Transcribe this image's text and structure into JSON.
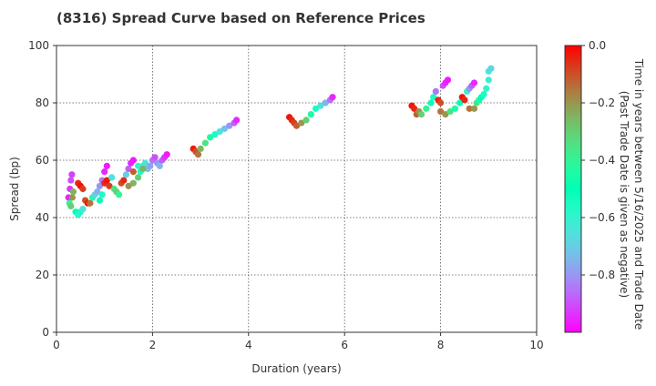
{
  "chart_data": {
    "type": "scatter",
    "title": "(8316)   Spread Curve based on Reference Prices",
    "xlabel": "Duration (years)",
    "ylabel": "Spread (bp)",
    "xlim": [
      0,
      10
    ],
    "ylim": [
      0,
      100
    ],
    "x_ticks": [
      "0",
      "2",
      "4",
      "6",
      "8",
      "10"
    ],
    "y_ticks": [
      "0",
      "20",
      "40",
      "60",
      "80",
      "100"
    ],
    "grid": true,
    "colorbar": {
      "label_line1": "Time in years between 5/16/2025 and Trade Date",
      "label_line2": "(Past Trade Date is given as negative)",
      "range": [
        -1.0,
        0.0
      ],
      "ticks": [
        "0.0",
        "−0.2",
        "−0.4",
        "−0.6",
        "−0.8"
      ],
      "colormap": "rainbow"
    },
    "series": [
      {
        "points": [
          [
            0.25,
            47,
            -0.95
          ],
          [
            0.28,
            50,
            -0.93
          ],
          [
            0.3,
            53,
            -0.9
          ],
          [
            0.32,
            55,
            -0.92
          ],
          [
            0.27,
            45,
            -0.4
          ],
          [
            0.3,
            44,
            -0.3
          ],
          [
            0.33,
            47,
            -0.2
          ],
          [
            0.35,
            49,
            -0.25
          ],
          [
            0.4,
            42,
            -0.5
          ],
          [
            0.45,
            41,
            -0.6
          ],
          [
            0.5,
            42,
            -0.55
          ],
          [
            0.55,
            43,
            -0.65
          ],
          [
            0.45,
            52,
            -0.05
          ],
          [
            0.5,
            51,
            -0.02
          ],
          [
            0.55,
            50,
            -0.08
          ],
          [
            0.6,
            46,
            -0.1
          ],
          [
            0.65,
            45,
            -0.03
          ],
          [
            0.7,
            45,
            -0.15
          ],
          [
            0.75,
            47,
            -0.45
          ],
          [
            0.8,
            48,
            -0.7
          ],
          [
            0.85,
            49,
            -0.75
          ],
          [
            0.9,
            51,
            -0.8
          ],
          [
            0.95,
            53,
            -0.85
          ],
          [
            1.0,
            56,
            -0.95
          ],
          [
            1.05,
            58,
            -0.97
          ],
          [
            0.9,
            46,
            -0.5
          ],
          [
            0.95,
            48,
            -0.55
          ],
          [
            1.0,
            52,
            -0.05
          ],
          [
            1.05,
            53,
            -0.02
          ],
          [
            1.1,
            51,
            -0.08
          ],
          [
            1.15,
            54,
            -0.65
          ],
          [
            1.2,
            50,
            -0.35
          ],
          [
            1.25,
            49,
            -0.3
          ],
          [
            1.3,
            48,
            -0.4
          ],
          [
            1.35,
            52,
            -0.1
          ],
          [
            1.4,
            53,
            -0.05
          ],
          [
            1.45,
            55,
            -0.7
          ],
          [
            1.5,
            57,
            -0.88
          ],
          [
            1.55,
            59,
            -0.95
          ],
          [
            1.6,
            60,
            -0.97
          ],
          [
            1.5,
            51,
            -0.2
          ],
          [
            1.6,
            52,
            -0.25
          ],
          [
            1.7,
            54,
            -0.3
          ],
          [
            1.75,
            56,
            -0.55
          ],
          [
            1.8,
            58,
            -0.6
          ],
          [
            1.85,
            59,
            -0.65
          ],
          [
            1.9,
            57,
            -0.72
          ],
          [
            1.95,
            58,
            -0.78
          ],
          [
            2.0,
            60,
            -0.85
          ],
          [
            2.05,
            61,
            -0.9
          ],
          [
            2.1,
            59,
            -0.8
          ],
          [
            2.15,
            58,
            -0.75
          ],
          [
            2.2,
            60,
            -0.88
          ],
          [
            2.25,
            61,
            -0.93
          ],
          [
            2.3,
            62,
            -0.97
          ],
          [
            1.6,
            56,
            -0.12
          ],
          [
            1.7,
            58,
            -0.6
          ],
          [
            1.8,
            57,
            -0.25
          ]
        ]
      },
      {
        "points": [
          [
            2.85,
            64,
            -0.03
          ],
          [
            2.9,
            63,
            -0.1
          ],
          [
            2.95,
            62,
            -0.15
          ],
          [
            3.0,
            64,
            -0.25
          ],
          [
            3.1,
            66,
            -0.35
          ],
          [
            3.2,
            68,
            -0.45
          ],
          [
            3.3,
            69,
            -0.55
          ],
          [
            3.4,
            70,
            -0.65
          ],
          [
            3.5,
            71,
            -0.72
          ],
          [
            3.6,
            72,
            -0.8
          ],
          [
            3.7,
            73,
            -0.88
          ],
          [
            3.75,
            74,
            -0.95
          ]
        ]
      },
      {
        "points": [
          [
            4.85,
            75,
            -0.02
          ],
          [
            4.9,
            74,
            -0.05
          ],
          [
            4.95,
            73,
            -0.08
          ],
          [
            5.0,
            72,
            -0.12
          ],
          [
            5.1,
            73,
            -0.2
          ],
          [
            5.2,
            74,
            -0.3
          ],
          [
            5.3,
            76,
            -0.45
          ],
          [
            5.4,
            78,
            -0.55
          ],
          [
            5.5,
            79,
            -0.65
          ],
          [
            5.6,
            80,
            -0.75
          ],
          [
            5.7,
            81,
            -0.85
          ],
          [
            5.75,
            82,
            -0.95
          ]
        ]
      },
      {
        "points": [
          [
            7.4,
            79,
            -0.02
          ],
          [
            7.45,
            78,
            -0.05
          ],
          [
            7.5,
            76,
            -0.12
          ],
          [
            7.55,
            77,
            -0.2
          ],
          [
            7.6,
            76,
            -0.3
          ],
          [
            7.7,
            78,
            -0.4
          ],
          [
            7.8,
            80,
            -0.5
          ],
          [
            7.85,
            82,
            -0.55
          ],
          [
            7.9,
            84,
            -0.85
          ],
          [
            7.95,
            81,
            -0.05
          ],
          [
            8.0,
            80,
            -0.1
          ],
          [
            8.05,
            86,
            -0.9
          ],
          [
            8.1,
            87,
            -0.95
          ],
          [
            8.15,
            88,
            -0.97
          ],
          [
            8.0,
            77,
            -0.15
          ],
          [
            8.1,
            76,
            -0.2
          ],
          [
            8.2,
            77,
            -0.35
          ],
          [
            8.3,
            78,
            -0.45
          ],
          [
            8.4,
            80,
            -0.5
          ],
          [
            8.45,
            82,
            -0.02
          ],
          [
            8.5,
            81,
            -0.05
          ],
          [
            8.55,
            84,
            -0.6
          ],
          [
            8.6,
            85,
            -0.8
          ],
          [
            8.65,
            86,
            -0.88
          ],
          [
            8.7,
            87,
            -0.95
          ],
          [
            8.6,
            78,
            -0.15
          ],
          [
            8.7,
            78,
            -0.2
          ],
          [
            8.75,
            80,
            -0.35
          ],
          [
            8.8,
            81,
            -0.45
          ],
          [
            8.85,
            82,
            -0.5
          ],
          [
            8.9,
            83,
            -0.55
          ],
          [
            8.95,
            85,
            -0.6
          ],
          [
            9.0,
            88,
            -0.62
          ],
          [
            9.0,
            91,
            -0.65
          ],
          [
            9.05,
            92,
            -0.68
          ]
        ]
      }
    ]
  }
}
